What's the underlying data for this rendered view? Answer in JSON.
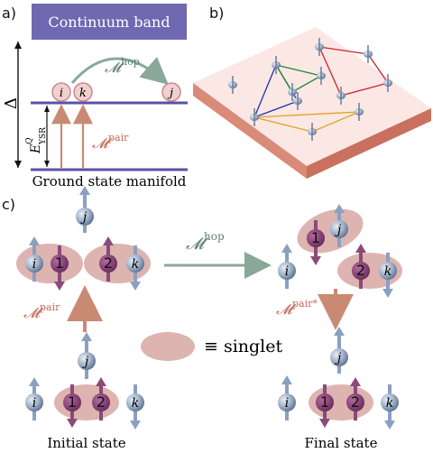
{
  "panels": {
    "a": {
      "label": "a)",
      "continuum_band": "Continuum band",
      "delta": "Δ",
      "m_hop": "𝓜",
      "m_hop_sup": "hop",
      "m_pair": "𝓜",
      "m_pair_sup": "pair",
      "energy": "E",
      "energy_sub": "YSR",
      "energy_sup": "Q",
      "ground_state": "Ground state manifold",
      "sites": [
        "i",
        "k",
        "j"
      ]
    },
    "b": {
      "label": "b)"
    },
    "c": {
      "label": "c)",
      "m_hop": "𝓜",
      "m_hop_sup": "hop",
      "m_pair_left": "𝓜",
      "m_pair_left_sup": "pair",
      "m_pair_right": "𝓜",
      "m_pair_right_sup": "pair*",
      "singlet_legend": "≡ singlet",
      "initial_state": "Initial state",
      "final_state": "Final state",
      "site_i": "i",
      "site_j": "j",
      "site_k": "k",
      "elec_1": "1",
      "elec_2": "2"
    }
  },
  "colors": {
    "band": "#7068b0",
    "level": "#5a52a8",
    "hop_arrow": "#8aa89a",
    "pair_arrow": "#c98a73",
    "singlet": "#ddb4b0",
    "site_fill": "#f2cfcf",
    "site_stroke": "#c98a8a",
    "electron": "#7a3a6a",
    "spin_up": "#8a4a7a",
    "slab_top": "#fbe8e4",
    "slab_side": "#d98a78",
    "blue_link": "#2030b0",
    "green_link": "#208a30",
    "red_link": "#d02030",
    "orange_link": "#e0a020"
  }
}
